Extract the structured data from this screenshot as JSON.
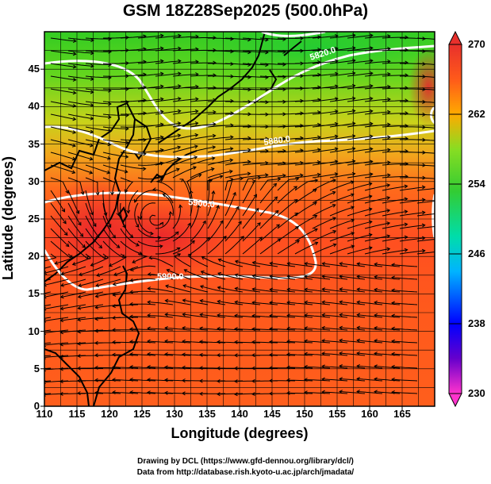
{
  "title": "GSM 18Z28Sep2025 (500.0hPa)",
  "axes": {
    "xlabel": "Longitude (degrees)",
    "ylabel": "Latitude  (degrees)",
    "xticks": [
      "110",
      "115",
      "120",
      "125",
      "130",
      "135",
      "140",
      "145",
      "150",
      "155",
      "160",
      "165"
    ],
    "yticks": [
      "45",
      "40",
      "35",
      "30",
      "25",
      "20",
      "15",
      "10",
      "5",
      "0"
    ],
    "xlim": [
      110,
      170
    ],
    "ylim": [
      0,
      50
    ]
  },
  "colorbar": {
    "ticks": [
      "270",
      "262",
      "254",
      "246",
      "238",
      "230"
    ],
    "range": [
      230,
      270
    ],
    "colors": [
      "#ff33cc",
      "#6600cc",
      "#0000ff",
      "#00b4ff",
      "#00ddaa",
      "#33cc33",
      "#88dd22",
      "#ffaa00",
      "#ff5a1a",
      "#e8302c"
    ]
  },
  "contours": {
    "labels": [
      "5820.0",
      "5880.0",
      "5900.0",
      "5900.0"
    ],
    "color": "#ffffff"
  },
  "credits": {
    "line1": "Drawing by DCL (https://www.gfd-dennou.org/library/dcl/)",
    "line2": "Data from http://database.rish.kyoto-u.ac.jp/arch/jmadata/"
  },
  "chart_data": {
    "type": "heatmap",
    "title": "GSM 18Z28Sep2025 (500.0hPa)",
    "xlabel": "Longitude (degrees)",
    "ylabel": "Latitude  (degrees)",
    "x_range": [
      110,
      170
    ],
    "y_range": [
      0,
      50
    ],
    "variable_range": [
      230,
      270
    ],
    "contour_levels": [
      5820,
      5880,
      5900
    ]
  }
}
